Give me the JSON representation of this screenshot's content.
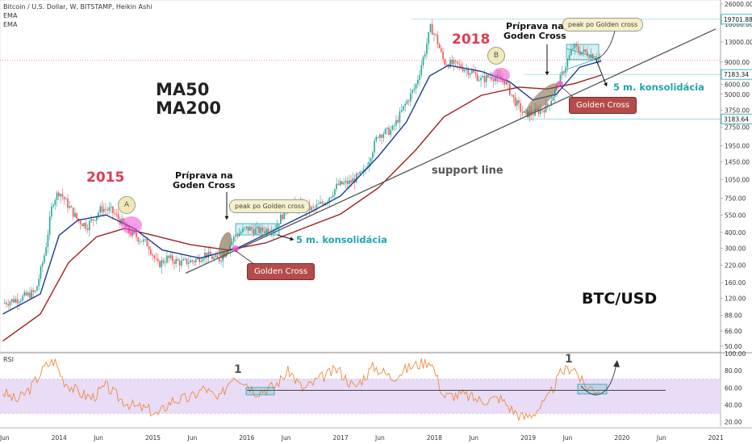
{
  "header": {
    "title": "Bitcoin / U.S. Dollar, W, BITSTAMP, Heikin Ashi",
    "ema1": "EMA",
    "ema2": "EMA",
    "rsi": "RSI"
  },
  "annotations": {
    "ma50": "MA50",
    "ma200": "MA200",
    "year2015": "2015",
    "year2018": "2018",
    "prep1": "Príprava na\nGoden Cross",
    "prep2": "Príprava na\nGoden Cross",
    "peak1": "peak po Golden cross",
    "peak2": "peak po Golden cross",
    "kons1": "5 m. konsolidácia",
    "kons2": "5 m. konsolidácia",
    "gc1": "Golden Cross",
    "gc2": "Golden Cross",
    "support": "support line",
    "btcusd": "BTC/USD",
    "markA": "A",
    "markB": "B",
    "rsi_one_1": "1",
    "rsi_one_2": "1"
  },
  "colors": {
    "up": "#26a69a",
    "down": "#ef5350",
    "ema_fast": "#1a3c8f",
    "ema_slow": "#a01f1f",
    "rsi_line": "#f08a3c",
    "rsi_band": "#e8dcf7",
    "accent_red": "#e53950",
    "teal": "#21a4ad"
  },
  "chart_data": {
    "type": "candlestick",
    "scale": "log",
    "ylim": [
      45,
      28000
    ],
    "x_axis_labels": [
      "Jun",
      "2014",
      "Jun",
      "2015",
      "Jun",
      "2016",
      "Jun",
      "2017",
      "Jun",
      "2018",
      "Jun",
      "2019",
      "Jun",
      "2020",
      "Jun",
      "2021"
    ],
    "y_axis_labels": [
      "26000.00",
      "18000.00",
      "13000.00",
      "9000.00",
      "6000.00",
      "5000.00",
      "3750.00",
      "2750.00",
      "1950.00",
      "1450.00",
      "1050.00",
      "750.00",
      "550.00",
      "400.00",
      "300.00",
      "220.00",
      "160.00",
      "120.00",
      "88.00",
      "66.00",
      "50.00"
    ],
    "price_tags": [
      "19701.88",
      "7183.34",
      "3183.64"
    ],
    "price_series": [
      {
        "t": 2013.4,
        "p": 110
      },
      {
        "t": 2013.58,
        "p": 120
      },
      {
        "t": 2013.75,
        "p": 135
      },
      {
        "t": 2013.85,
        "p": 280
      },
      {
        "t": 2013.93,
        "p": 700
      },
      {
        "t": 2014.0,
        "p": 850
      },
      {
        "t": 2014.1,
        "p": 650
      },
      {
        "t": 2014.2,
        "p": 500
      },
      {
        "t": 2014.3,
        "p": 450
      },
      {
        "t": 2014.45,
        "p": 620
      },
      {
        "t": 2014.55,
        "p": 600
      },
      {
        "t": 2014.65,
        "p": 500
      },
      {
        "t": 2014.75,
        "p": 400
      },
      {
        "t": 2014.85,
        "p": 360
      },
      {
        "t": 2014.95,
        "p": 320
      },
      {
        "t": 2015.05,
        "p": 220
      },
      {
        "t": 2015.15,
        "p": 250
      },
      {
        "t": 2015.3,
        "p": 230
      },
      {
        "t": 2015.45,
        "p": 240
      },
      {
        "t": 2015.55,
        "p": 270
      },
      {
        "t": 2015.7,
        "p": 240
      },
      {
        "t": 2015.8,
        "p": 300
      },
      {
        "t": 2015.88,
        "p": 380
      },
      {
        "t": 2016.0,
        "p": 430
      },
      {
        "t": 2016.15,
        "p": 410
      },
      {
        "t": 2016.3,
        "p": 440
      },
      {
        "t": 2016.45,
        "p": 670
      },
      {
        "t": 2016.55,
        "p": 650
      },
      {
        "t": 2016.7,
        "p": 610
      },
      {
        "t": 2016.85,
        "p": 720
      },
      {
        "t": 2016.97,
        "p": 950
      },
      {
        "t": 2017.1,
        "p": 1000
      },
      {
        "t": 2017.25,
        "p": 1200
      },
      {
        "t": 2017.4,
        "p": 2400
      },
      {
        "t": 2017.55,
        "p": 2600
      },
      {
        "t": 2017.7,
        "p": 4300
      },
      {
        "t": 2017.8,
        "p": 5800
      },
      {
        "t": 2017.9,
        "p": 11000
      },
      {
        "t": 2017.96,
        "p": 17000
      },
      {
        "t": 2018.02,
        "p": 14000
      },
      {
        "t": 2018.1,
        "p": 9000
      },
      {
        "t": 2018.25,
        "p": 8500
      },
      {
        "t": 2018.4,
        "p": 7500
      },
      {
        "t": 2018.5,
        "p": 6500
      },
      {
        "t": 2018.6,
        "p": 7000
      },
      {
        "t": 2018.75,
        "p": 6400
      },
      {
        "t": 2018.85,
        "p": 4500
      },
      {
        "t": 2018.95,
        "p": 3500
      },
      {
        "t": 2019.05,
        "p": 3500
      },
      {
        "t": 2019.2,
        "p": 4000
      },
      {
        "t": 2019.3,
        "p": 5500
      },
      {
        "t": 2019.4,
        "p": 8500
      },
      {
        "t": 2019.48,
        "p": 12000
      },
      {
        "t": 2019.55,
        "p": 11000
      },
      {
        "t": 2019.65,
        "p": 10500
      },
      {
        "t": 2019.72,
        "p": 10000
      },
      {
        "t": 2019.78,
        "p": 9300
      }
    ],
    "ema_fast_series": [
      {
        "t": 2013.4,
        "p": 90
      },
      {
        "t": 2013.8,
        "p": 130
      },
      {
        "t": 2014.0,
        "p": 380
      },
      {
        "t": 2014.2,
        "p": 500
      },
      {
        "t": 2014.5,
        "p": 550
      },
      {
        "t": 2014.8,
        "p": 430
      },
      {
        "t": 2015.1,
        "p": 290
      },
      {
        "t": 2015.5,
        "p": 250
      },
      {
        "t": 2015.9,
        "p": 300
      },
      {
        "t": 2016.3,
        "p": 420
      },
      {
        "t": 2016.7,
        "p": 590
      },
      {
        "t": 2017.0,
        "p": 780
      },
      {
        "t": 2017.4,
        "p": 1600
      },
      {
        "t": 2017.7,
        "p": 3000
      },
      {
        "t": 2017.95,
        "p": 7000
      },
      {
        "t": 2018.15,
        "p": 8500
      },
      {
        "t": 2018.5,
        "p": 7600
      },
      {
        "t": 2018.8,
        "p": 6300
      },
      {
        "t": 2019.05,
        "p": 4500
      },
      {
        "t": 2019.3,
        "p": 5000
      },
      {
        "t": 2019.55,
        "p": 8200
      },
      {
        "t": 2019.78,
        "p": 9200
      }
    ],
    "ema_slow_series": [
      {
        "t": 2013.4,
        "p": 55
      },
      {
        "t": 2013.8,
        "p": 90
      },
      {
        "t": 2014.1,
        "p": 230
      },
      {
        "t": 2014.4,
        "p": 370
      },
      {
        "t": 2014.7,
        "p": 430
      },
      {
        "t": 2015.0,
        "p": 380
      },
      {
        "t": 2015.4,
        "p": 320
      },
      {
        "t": 2015.8,
        "p": 290
      },
      {
        "t": 2016.2,
        "p": 330
      },
      {
        "t": 2016.6,
        "p": 430
      },
      {
        "t": 2017.0,
        "p": 560
      },
      {
        "t": 2017.4,
        "p": 900
      },
      {
        "t": 2017.8,
        "p": 1800
      },
      {
        "t": 2018.1,
        "p": 3300
      },
      {
        "t": 2018.5,
        "p": 4900
      },
      {
        "t": 2018.9,
        "p": 5700
      },
      {
        "t": 2019.2,
        "p": 5500
      },
      {
        "t": 2019.5,
        "p": 6100
      },
      {
        "t": 2019.78,
        "p": 7100
      }
    ],
    "support_line": [
      {
        "t": 2015.35,
        "p": 190
      },
      {
        "t": 2021.0,
        "p": 16500
      }
    ],
    "rsi": {
      "ylim": [
        15,
        100
      ],
      "y_axis_labels": [
        "100.00",
        "80.00",
        "60.00",
        "40.00",
        "20.00"
      ],
      "band": [
        30,
        70
      ],
      "level_line": 57,
      "series": [
        {
          "t": 2013.4,
          "v": 55
        },
        {
          "t": 2013.55,
          "v": 45
        },
        {
          "t": 2013.7,
          "v": 60
        },
        {
          "t": 2013.85,
          "v": 85
        },
        {
          "t": 2013.95,
          "v": 92
        },
        {
          "t": 2014.05,
          "v": 68
        },
        {
          "t": 2014.2,
          "v": 55
        },
        {
          "t": 2014.35,
          "v": 48
        },
        {
          "t": 2014.5,
          "v": 62
        },
        {
          "t": 2014.65,
          "v": 47
        },
        {
          "t": 2014.8,
          "v": 38
        },
        {
          "t": 2014.95,
          "v": 35
        },
        {
          "t": 2015.05,
          "v": 28
        },
        {
          "t": 2015.2,
          "v": 45
        },
        {
          "t": 2015.4,
          "v": 48
        },
        {
          "t": 2015.55,
          "v": 60
        },
        {
          "t": 2015.7,
          "v": 45
        },
        {
          "t": 2015.85,
          "v": 75
        },
        {
          "t": 2015.95,
          "v": 70
        },
        {
          "t": 2016.1,
          "v": 55
        },
        {
          "t": 2016.3,
          "v": 62
        },
        {
          "t": 2016.45,
          "v": 80
        },
        {
          "t": 2016.6,
          "v": 58
        },
        {
          "t": 2016.8,
          "v": 72
        },
        {
          "t": 2016.97,
          "v": 82
        },
        {
          "t": 2017.15,
          "v": 60
        },
        {
          "t": 2017.35,
          "v": 85
        },
        {
          "t": 2017.55,
          "v": 72
        },
        {
          "t": 2017.75,
          "v": 85
        },
        {
          "t": 2017.96,
          "v": 92
        },
        {
          "t": 2018.1,
          "v": 50
        },
        {
          "t": 2018.3,
          "v": 52
        },
        {
          "t": 2018.5,
          "v": 45
        },
        {
          "t": 2018.7,
          "v": 48
        },
        {
          "t": 2018.85,
          "v": 32
        },
        {
          "t": 2018.95,
          "v": 25
        },
        {
          "t": 2019.05,
          "v": 30
        },
        {
          "t": 2019.2,
          "v": 45
        },
        {
          "t": 2019.35,
          "v": 78
        },
        {
          "t": 2019.48,
          "v": 85
        },
        {
          "t": 2019.6,
          "v": 62
        },
        {
          "t": 2019.72,
          "v": 58
        },
        {
          "t": 2019.78,
          "v": 58
        }
      ]
    }
  }
}
